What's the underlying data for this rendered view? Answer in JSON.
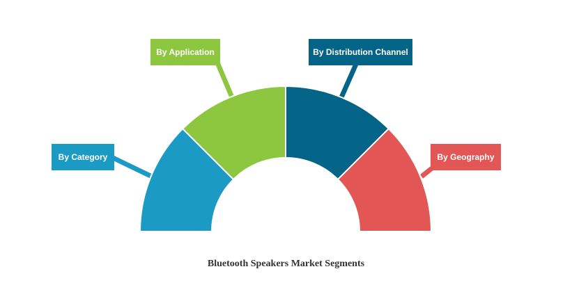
{
  "diagram": {
    "type": "semi-donut",
    "segments": [
      {
        "label": "By Category",
        "color": "#1b9bc4"
      },
      {
        "label": "By Application",
        "color": "#8dc63f"
      },
      {
        "label": "By Distribution Channel",
        "color": "#036487"
      },
      {
        "label": "By Geography",
        "color": "#e35656"
      }
    ],
    "caption": "Bluetooth Speakers Market Segments"
  }
}
